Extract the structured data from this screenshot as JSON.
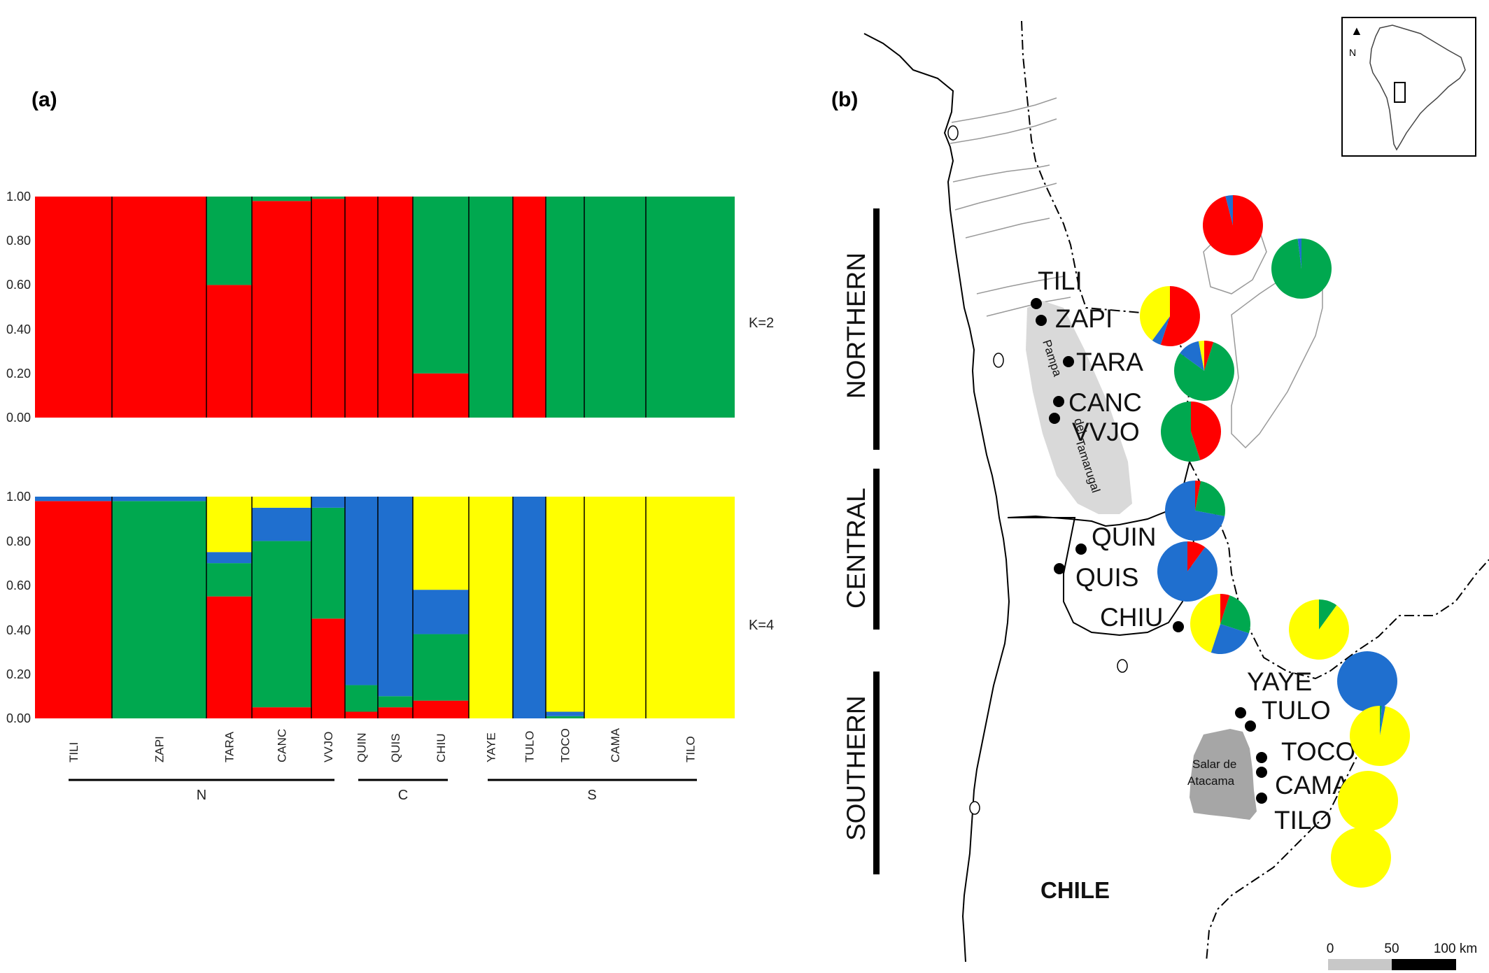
{
  "panels": {
    "a": "(a)",
    "b": "(b)"
  },
  "k_labels": [
    "K=2",
    "K=4"
  ],
  "y_ticks": [
    "1.00",
    "0.80",
    "0.60",
    "0.40",
    "0.20",
    "0.00"
  ],
  "groups": [
    "N",
    "C",
    "S"
  ],
  "colors": {
    "cluster_red": "#ff0000",
    "cluster_green": "#00a84f",
    "cluster_blue": "#1f6fcf",
    "cluster_yellow": "#ffff00"
  },
  "chart_data": [
    {
      "type": "bar",
      "title": "K=2",
      "ylim": [
        0,
        1
      ],
      "stacked": true,
      "categories": [
        "TILI",
        "ZAPI",
        "TARA",
        "CANC",
        "VVJO",
        "QUIN",
        "QUIS",
        "CHIU",
        "YAYE",
        "TULO",
        "TOCO",
        "CAMA",
        "TILO"
      ],
      "groups": {
        "N": [
          "TILI",
          "ZAPI",
          "TARA",
          "CANC",
          "VVJO"
        ],
        "C": [
          "QUIN",
          "QUIS",
          "CHIU"
        ],
        "S": [
          "YAYE",
          "TULO",
          "TOCO",
          "CAMA",
          "TILO"
        ]
      },
      "series": [
        {
          "color": "#ff0000",
          "values": [
            1.0,
            1.0,
            0.6,
            0.98,
            0.99,
            1.0,
            1.0,
            0.2,
            0.0,
            1.0,
            0.0,
            0.0,
            0.0
          ]
        },
        {
          "color": "#00a84f",
          "values": [
            0.0,
            0.0,
            0.4,
            0.02,
            0.01,
            0.0,
            0.0,
            0.8,
            1.0,
            0.0,
            1.0,
            1.0,
            1.0
          ]
        }
      ]
    },
    {
      "type": "bar",
      "title": "K=4",
      "ylim": [
        0,
        1
      ],
      "stacked": true,
      "categories": [
        "TILI",
        "ZAPI",
        "TARA",
        "CANC",
        "VVJO",
        "QUIN",
        "QUIS",
        "CHIU",
        "YAYE",
        "TULO",
        "TOCO",
        "CAMA",
        "TILO"
      ],
      "series": [
        {
          "color": "#ff0000",
          "values": [
            0.98,
            0.0,
            0.55,
            0.05,
            0.45,
            0.03,
            0.05,
            0.08,
            0.0,
            0.0,
            0.0,
            0.0,
            0.0
          ]
        },
        {
          "color": "#00a84f",
          "values": [
            0.0,
            0.98,
            0.15,
            0.75,
            0.5,
            0.12,
            0.05,
            0.3,
            0.0,
            0.0,
            0.01,
            0.0,
            0.0
          ]
        },
        {
          "color": "#1f6fcf",
          "values": [
            0.02,
            0.02,
            0.05,
            0.15,
            0.05,
            0.85,
            0.9,
            0.2,
            0.0,
            1.0,
            0.02,
            0.0,
            0.0
          ]
        },
        {
          "color": "#ffff00",
          "values": [
            0.0,
            0.0,
            0.25,
            0.05,
            0.0,
            0.0,
            0.0,
            0.42,
            1.0,
            0.0,
            0.97,
            1.0,
            1.0
          ]
        }
      ]
    }
  ],
  "map": {
    "regions": [
      "NORTHERN",
      "CENTRAL",
      "SOUTHERN"
    ],
    "country_label": "CHILE",
    "feature_labels": [
      "Pampa",
      "del",
      "Tamarugal",
      "Salar de",
      "Atacama"
    ],
    "north_label": "N",
    "scale_labels": [
      "0",
      "50",
      "100 km"
    ],
    "sites": [
      {
        "name": "TILI",
        "pie": [
          0.96,
          0.0,
          0.04,
          0.0
        ]
      },
      {
        "name": "ZAPI",
        "pie": [
          0.0,
          0.98,
          0.02,
          0.0
        ]
      },
      {
        "name": "TARA",
        "pie": [
          0.55,
          0.0,
          0.05,
          0.4
        ]
      },
      {
        "name": "CANC",
        "pie": [
          0.05,
          0.8,
          0.12,
          0.03
        ]
      },
      {
        "name": "VVJO",
        "pie": [
          0.45,
          0.55,
          0.0,
          0.0
        ]
      },
      {
        "name": "QUIN",
        "pie": [
          0.03,
          0.25,
          0.72,
          0.0
        ]
      },
      {
        "name": "QUIS",
        "pie": [
          0.1,
          0.0,
          0.9,
          0.0
        ]
      },
      {
        "name": "CHIU",
        "pie": [
          0.05,
          0.25,
          0.25,
          0.45
        ]
      },
      {
        "name": "YAYE",
        "pie": [
          0.0,
          0.1,
          0.0,
          0.9
        ]
      },
      {
        "name": "TULO",
        "pie": [
          0.0,
          0.0,
          1.0,
          0.0
        ]
      },
      {
        "name": "TOCO",
        "pie": [
          0.0,
          0.01,
          0.02,
          0.97
        ]
      },
      {
        "name": "CAMA",
        "pie": [
          0.0,
          0.0,
          0.0,
          1.0
        ]
      },
      {
        "name": "TILO",
        "pie": [
          0.0,
          0.0,
          0.0,
          1.0
        ]
      }
    ]
  }
}
